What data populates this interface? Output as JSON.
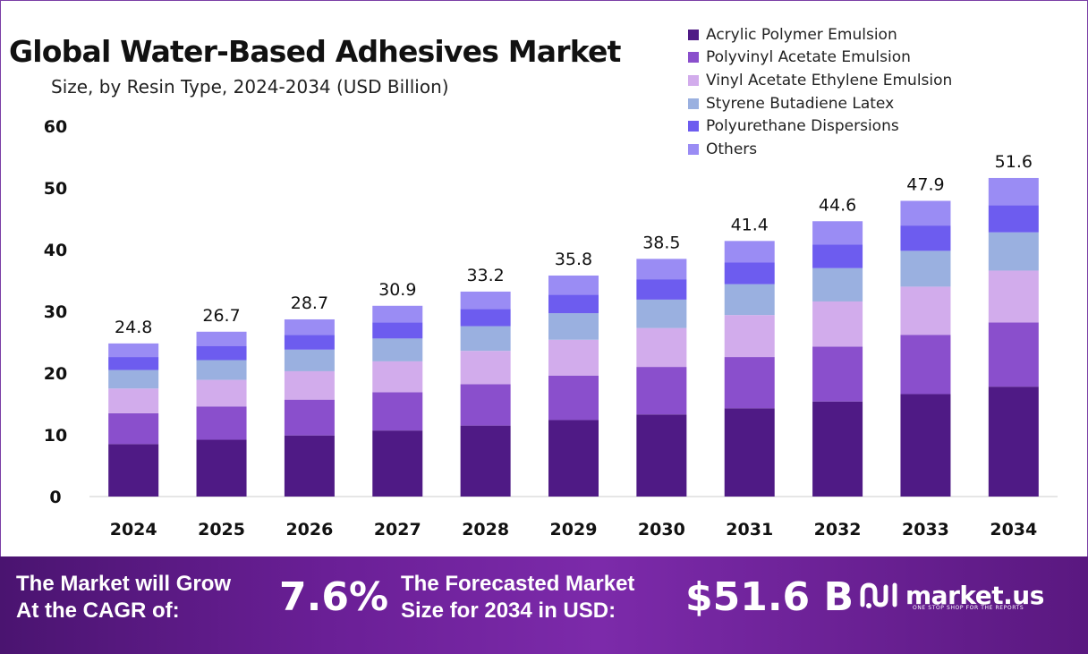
{
  "title": "Global Water-Based Adhesives Market",
  "subtitle": "Size, by Resin Type, 2024-2034 (USD Billion)",
  "chart_data": {
    "type": "bar",
    "stacked": true,
    "categories": [
      "2024",
      "2025",
      "2026",
      "2027",
      "2028",
      "2029",
      "2030",
      "2031",
      "2032",
      "2033",
      "2034"
    ],
    "totals": [
      24.8,
      26.7,
      28.7,
      30.9,
      33.2,
      35.8,
      38.5,
      41.4,
      44.6,
      47.9,
      51.6
    ],
    "series": [
      {
        "name": "Acrylic Polymer Emulsion",
        "color": "#4f1a85",
        "values": [
          8.5,
          9.2,
          9.9,
          10.7,
          11.5,
          12.4,
          13.3,
          14.3,
          15.4,
          16.6,
          17.8
        ]
      },
      {
        "name": "Polyvinyl Acetate Emulsion",
        "color": "#8a4fcc",
        "values": [
          5.0,
          5.4,
          5.8,
          6.2,
          6.7,
          7.2,
          7.7,
          8.3,
          8.9,
          9.6,
          10.4
        ]
      },
      {
        "name": "Vinyl Acetate Ethylene Emulsion",
        "color": "#d2acec",
        "values": [
          4.0,
          4.3,
          4.6,
          5.0,
          5.4,
          5.8,
          6.3,
          6.8,
          7.3,
          7.8,
          8.4
        ]
      },
      {
        "name": "Styrene Butadiene Latex",
        "color": "#9ab0e0",
        "values": [
          3.0,
          3.2,
          3.5,
          3.7,
          4.0,
          4.3,
          4.6,
          5.0,
          5.4,
          5.8,
          6.2
        ]
      },
      {
        "name": "Polyurethane Dispersions",
        "color": "#6d5cef",
        "values": [
          2.1,
          2.3,
          2.4,
          2.6,
          2.8,
          3.0,
          3.3,
          3.5,
          3.8,
          4.1,
          4.4
        ]
      },
      {
        "name": "Others",
        "color": "#9a8cf4",
        "values": [
          2.2,
          2.3,
          2.5,
          2.7,
          2.8,
          3.1,
          3.3,
          3.5,
          3.8,
          4.0,
          4.4
        ]
      }
    ],
    "ylim": [
      0,
      60
    ],
    "yticks": [
      0,
      10,
      20,
      30,
      40,
      50,
      60
    ],
    "grid": false,
    "legend": "top-right"
  },
  "banner": {
    "cagr_label_line1": "The Market will Grow",
    "cagr_label_line2": "At the CAGR of:",
    "cagr_value": "7.6%",
    "forecast_label_line1": "The Forecasted Market",
    "forecast_label_line2": "Size for 2034 in USD:",
    "forecast_value": "$51.6 B",
    "brand_name": "market.us",
    "brand_tagline": "ONE STOP SHOP FOR THE REPORTS",
    "brand_icon": "market-us-logo-icon"
  }
}
